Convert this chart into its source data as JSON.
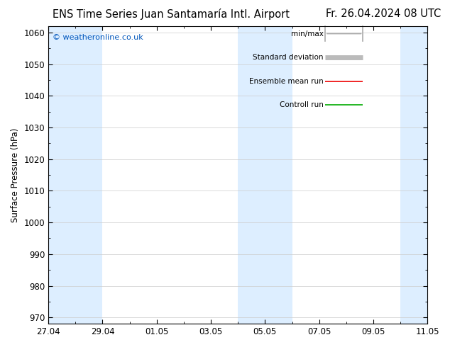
{
  "title_left": "ENS Time Series Juan Santamaría Intl. Airport",
  "title_right": "Fr. 26.04.2024 08 UTC",
  "ylabel": "Surface Pressure (hPa)",
  "ylim": [
    968,
    1062
  ],
  "yticks": [
    970,
    980,
    990,
    1000,
    1010,
    1020,
    1030,
    1040,
    1050,
    1060
  ],
  "xtick_labels": [
    "27.04",
    "29.04",
    "01.05",
    "03.05",
    "05.05",
    "07.05",
    "09.05",
    "11.05"
  ],
  "xtick_days_from_start": [
    0,
    2,
    4,
    6,
    8,
    10,
    12,
    14
  ],
  "total_days": 14,
  "shade_regions": [
    {
      "start_day": 0,
      "end_day": 2
    },
    {
      "start_day": 7,
      "end_day": 9
    },
    {
      "start_day": 13,
      "end_day": 14
    }
  ],
  "shade_color": "#ddeeff",
  "background_color": "#ffffff",
  "plot_bg_color": "#ffffff",
  "grid_color": "#cccccc",
  "copyright_text": "© weatheronline.co.uk",
  "copyright_color": "#0055bb",
  "legend_items": [
    {
      "label": "min/max",
      "color": "#aaaaaa",
      "lw": 1.2,
      "style": "minmax"
    },
    {
      "label": "Standard deviation",
      "color": "#bbbbbb",
      "lw": 5,
      "style": "solid"
    },
    {
      "label": "Ensemble mean run",
      "color": "#ee0000",
      "lw": 1.2,
      "style": "solid"
    },
    {
      "label": "Controll run",
      "color": "#00aa00",
      "lw": 1.2,
      "style": "solid"
    }
  ],
  "title_fontsize": 10.5,
  "tick_fontsize": 8.5,
  "ylabel_fontsize": 8.5,
  "legend_fontsize": 7.5
}
